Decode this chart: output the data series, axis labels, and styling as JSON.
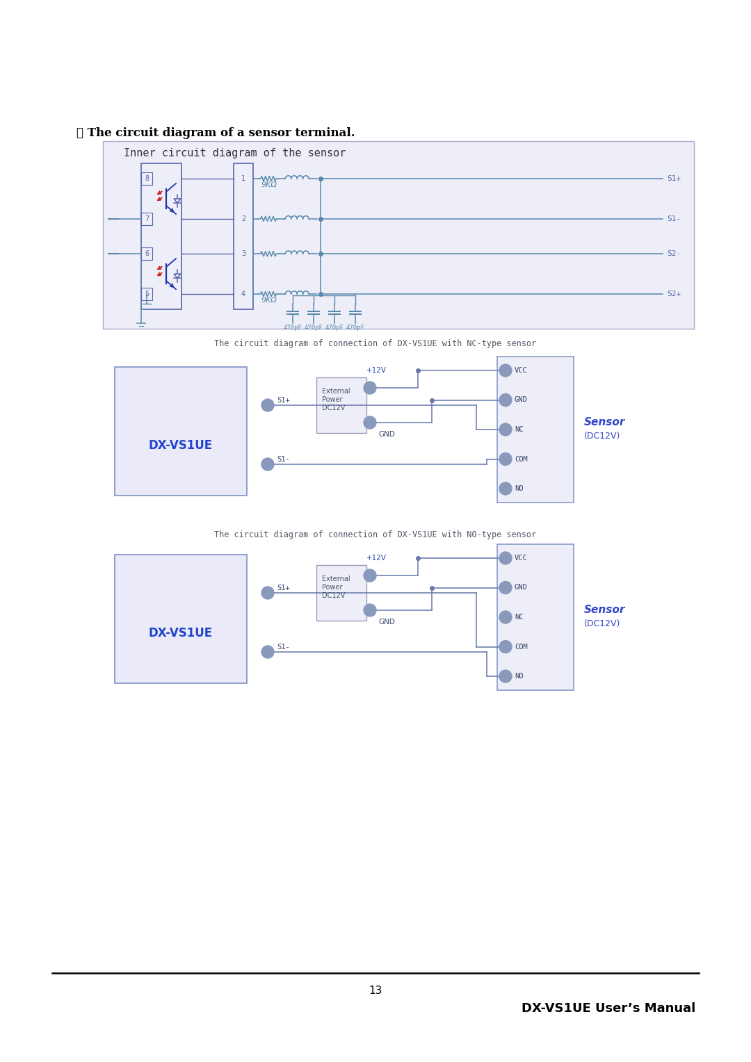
{
  "page_bg": "#ffffff",
  "title_bullet": "・ The circuit diagram of a sensor terminal.",
  "title_fontsize": 12,
  "subtitle1": "Inner circuit diagram of the sensor",
  "subtitle_fontsize": 11,
  "diagram1_bg": "#eeeef8",
  "diagram1_border": "#aaaacc",
  "circuit_color": "#5566aa",
  "circuit_color_green": "#5588aa",
  "red_arrow": "#cc2222",
  "blue_transistor": "#2233aa",
  "label_s1plus": "S1+",
  "label_s1minus": "S1-",
  "label_s2minus": "S2-",
  "label_s2plus": "S2+",
  "label_9kR": "9KΩ",
  "label_caps": "470pF",
  "diagram2_title": "The circuit diagram of connection of DX-VS1UE with NC-type sensor",
  "diagram3_title": "The circuit diagram of connection of DX-VS1UE with NO-type sensor",
  "dxvs1ue_label": "DX-VS1UE",
  "sensor_label": "Sensor",
  "sensor_label2": "(DC12V)",
  "ext_power_label": "+12V",
  "ext_power2_label": "External\nPower\nDC12V",
  "gnd2_label": "GND",
  "page_number": "13",
  "footer_right": "DX-VS1UE User’s Manual",
  "footer_color": "#000000",
  "footer_fontsize": 13,
  "page_num_fontsize": 11,
  "sensor_circ_color": "#8899bb",
  "line_color": "#6677aa",
  "ext_box_color": "#aabbcc"
}
